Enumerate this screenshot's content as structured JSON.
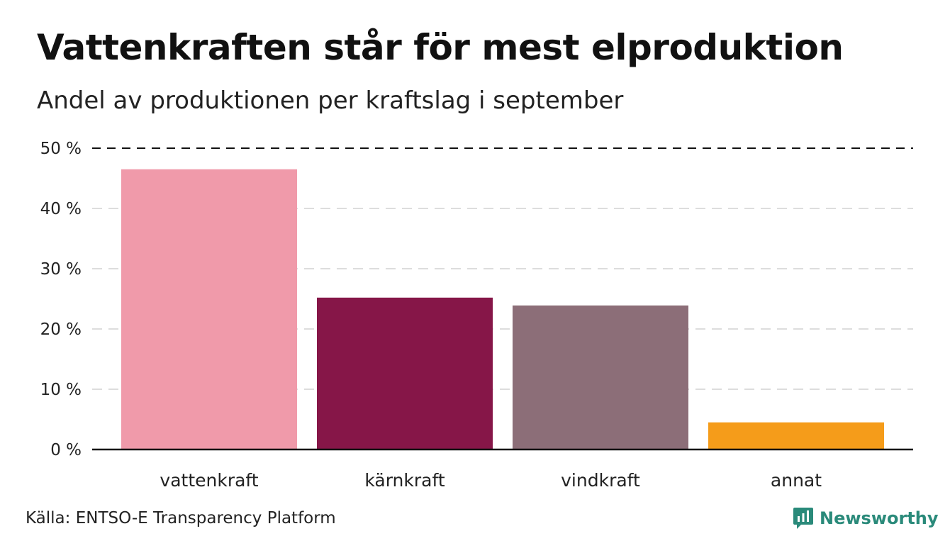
{
  "title": "Vattenkraften står för mest elproduktion",
  "subtitle": "Andel av produktionen per kraftslag i september",
  "source": "Källa: ENTSO-E Transparency Platform",
  "brand": "Newsworthy",
  "colors": {
    "vattenkraft": "#f09aaa",
    "karnkraft": "#861648",
    "vindkraft": "#8c6e78",
    "annat": "#f59c1a",
    "grid": "#dddddd",
    "axis": "#111111",
    "brand": "#2a8a7a"
  },
  "chart_data": {
    "type": "bar",
    "title": "Vattenkraften står för mest elproduktion",
    "subtitle": "Andel av produktionen per kraftslag i september",
    "categories": [
      "vattenkraft",
      "kärnkraft",
      "vindkraft",
      "annat"
    ],
    "values": [
      46.5,
      25.2,
      23.9,
      4.5
    ],
    "unit": "%",
    "ylim": [
      0,
      50
    ],
    "yticks": [
      0,
      10,
      20,
      30,
      40,
      50
    ],
    "ytick_labels": [
      "0 %",
      "10 %",
      "20 %",
      "30 %",
      "40 %",
      "50 %"
    ],
    "grid": true,
    "xlabel": "",
    "ylabel": ""
  }
}
